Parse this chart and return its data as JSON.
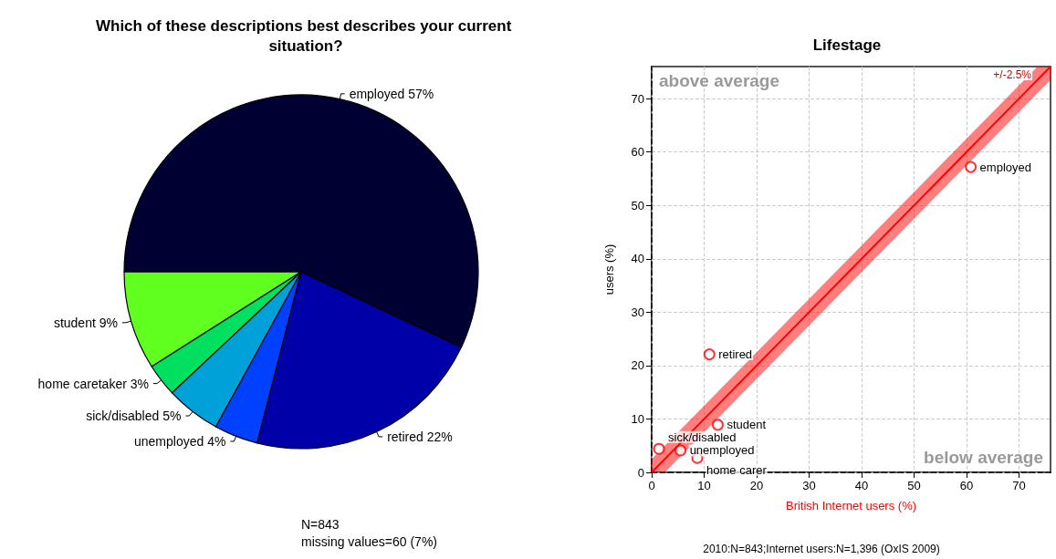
{
  "chart_data": [
    {
      "type": "pie",
      "title": "Which of these descriptions best describes your current situation?",
      "categories": [
        "student",
        "home caretaker",
        "sick/disabled",
        "unemployed",
        "retired",
        "employed"
      ],
      "values": [
        9,
        3,
        5,
        4,
        22,
        57
      ],
      "value_labels": [
        "9%",
        "3%",
        "5%",
        "4%",
        "22%",
        "57%"
      ],
      "colors": [
        "#60ff20",
        "#00e060",
        "#00a0d8",
        "#0040ff",
        "#0000a8",
        "#000033"
      ],
      "annotations": [
        "N=843",
        "missing values=60 (7%)"
      ]
    },
    {
      "type": "scatter",
      "title": "Lifestage",
      "xlabel": "British Internet users (%)",
      "ylabel": "users (%)",
      "xlim": [
        0,
        76
      ],
      "ylim": [
        0,
        76
      ],
      "xticks": [
        0,
        10,
        20,
        30,
        40,
        50,
        60,
        70
      ],
      "yticks": [
        0,
        10,
        20,
        30,
        40,
        50,
        60,
        70
      ],
      "grid": true,
      "series": [
        {
          "type": "line",
          "color": "#ff0000",
          "x": [
            0,
            2.5,
            73.5,
            76
          ],
          "values": [
            0,
            2.5,
            73.5,
            76
          ],
          "lower": [
            0,
            0,
            71,
            73.5
          ],
          "upper": [
            2.5,
            5,
            76,
            76
          ]
        },
        {
          "color": "#ff0000",
          "marker": "circle",
          "x": [
            60.8,
            11.0,
            12.6,
            5.5,
            1.4,
            8.7
          ],
          "values": [
            57.2,
            22.1,
            8.9,
            4.1,
            4.4,
            2.7
          ]
        }
      ],
      "annotations": [
        {
          "text": "employed",
          "x": 60.8,
          "y": 57.2
        },
        {
          "text": "retired",
          "x": 11.0,
          "y": 22.1
        },
        {
          "text": "student",
          "x": 12.6,
          "y": 8.9
        },
        {
          "text": "unemployed",
          "x": 5.5,
          "y": 4.1
        },
        {
          "text": "sick/disabled",
          "x": 1.4,
          "y": 4.4
        },
        {
          "text": "home carer",
          "x": 8.7,
          "y": 2.7
        },
        "above average",
        "below average",
        "+/-2.5%",
        "2010:N=843;Internet users:N=1,396 (OxIS 2009)"
      ]
    }
  ]
}
